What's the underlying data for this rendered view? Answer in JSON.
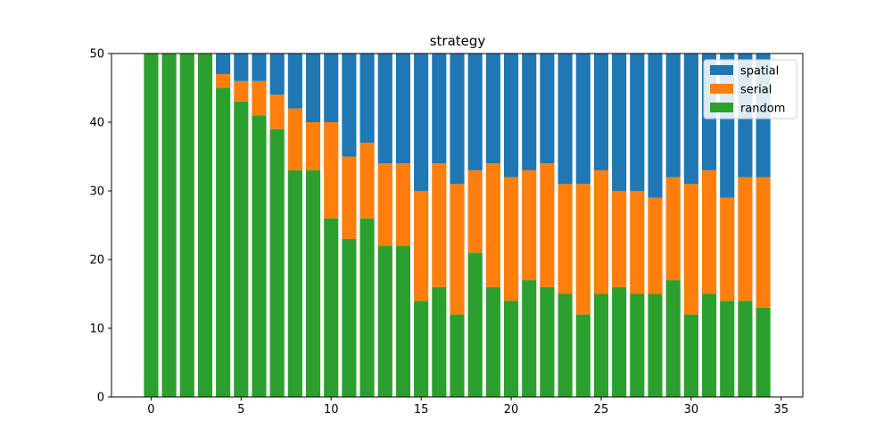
{
  "chart_data": {
    "type": "bar",
    "stacked": true,
    "title": "strategy",
    "xlabel": "",
    "ylabel": "",
    "x": [
      0,
      1,
      2,
      3,
      4,
      5,
      6,
      7,
      8,
      9,
      10,
      11,
      12,
      13,
      14,
      15,
      16,
      17,
      18,
      19,
      20,
      21,
      22,
      23,
      24,
      25,
      26,
      27,
      28,
      29,
      30,
      31,
      32,
      33,
      34
    ],
    "xlim": [
      -2.2,
      36.2
    ],
    "ylim": [
      0,
      50
    ],
    "xticks": [
      0,
      5,
      10,
      15,
      20,
      25,
      30,
      35
    ],
    "yticks": [
      0,
      10,
      20,
      30,
      40,
      50
    ],
    "grid": false,
    "legend_position": "top-right",
    "series": [
      {
        "name": "random",
        "color": "#2ca02c",
        "values": [
          50,
          50,
          50,
          50,
          45,
          43,
          41,
          39,
          33,
          33,
          26,
          23,
          26,
          22,
          22,
          14,
          16,
          12,
          21,
          16,
          14,
          17,
          16,
          15,
          12,
          15,
          16,
          15,
          15,
          17,
          12,
          15,
          14,
          14,
          13
        ]
      },
      {
        "name": "serial",
        "color": "#ff7f0e",
        "values": [
          0,
          0,
          0,
          0,
          2,
          3,
          5,
          5,
          9,
          7,
          14,
          12,
          11,
          12,
          12,
          16,
          18,
          19,
          12,
          18,
          18,
          16,
          18,
          16,
          19,
          18,
          14,
          15,
          14,
          15,
          19,
          18,
          15,
          18,
          19
        ]
      },
      {
        "name": "spatial",
        "color": "#1f77b4",
        "values": [
          0,
          0,
          0,
          0,
          3,
          4,
          4,
          6,
          8,
          10,
          10,
          15,
          13,
          16,
          16,
          20,
          16,
          19,
          17,
          16,
          18,
          17,
          16,
          19,
          19,
          17,
          20,
          20,
          21,
          18,
          19,
          17,
          21,
          18,
          18
        ]
      }
    ],
    "legend_order": [
      "spatial",
      "serial",
      "random"
    ]
  }
}
